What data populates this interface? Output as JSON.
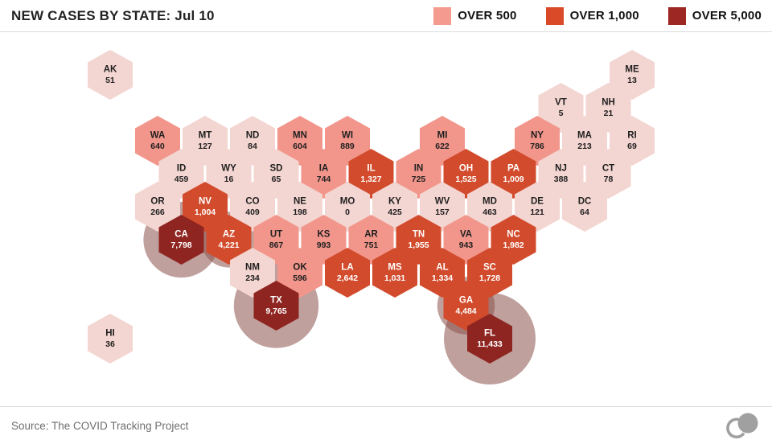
{
  "title": "NEW CASES BY STATE: Jul 10",
  "legend": [
    {
      "label": "OVER 500",
      "color": "#f59a8e"
    },
    {
      "label": "OVER 1,000",
      "color": "#da4a28"
    },
    {
      "label": "OVER 5,000",
      "color": "#9c2723"
    }
  ],
  "source": "Source: The COVID Tracking Project",
  "colors": {
    "under_500": "#f3d5d1",
    "over_500": "#f2968b",
    "over_1000": "#d24b2c",
    "over_5000": "#8e2521",
    "bubble": "rgba(139,82,76,0.55)",
    "text_dark": "#1f1f1f",
    "text_light": "#ffffff",
    "logo": "#a0a0a0"
  },
  "chart_data": {
    "type": "heatmap",
    "subtype": "hexagon-tile-cartogram",
    "title": "NEW CASES BY STATE: Jul 10",
    "date_label": "Jul 10",
    "unit": "new COVID-19 cases per state",
    "legend": [
      "OVER 500",
      "OVER 1,000",
      "OVER 5,000"
    ],
    "legend_position": "top-right",
    "bubble_note": "translucent circles behind tiles scale with case count for states over 1,000",
    "states": [
      {
        "abbr": "AK",
        "label": "51",
        "value": 51,
        "row": 0,
        "col": 0
      },
      {
        "abbr": "ME",
        "label": "13",
        "value": 13,
        "row": 0,
        "col": 22
      },
      {
        "abbr": "VT",
        "label": "5",
        "value": 5,
        "row": 1,
        "col": 19
      },
      {
        "abbr": "NH",
        "label": "21",
        "value": 21,
        "row": 1,
        "col": 21
      },
      {
        "abbr": "WA",
        "label": "640",
        "value": 640,
        "row": 2,
        "col": 2
      },
      {
        "abbr": "MT",
        "label": "127",
        "value": 127,
        "row": 2,
        "col": 4
      },
      {
        "abbr": "ND",
        "label": "84",
        "value": 84,
        "row": 2,
        "col": 6
      },
      {
        "abbr": "MN",
        "label": "604",
        "value": 604,
        "row": 2,
        "col": 8
      },
      {
        "abbr": "WI",
        "label": "889",
        "value": 889,
        "row": 2,
        "col": 10
      },
      {
        "abbr": "MI",
        "label": "622",
        "value": 622,
        "row": 2,
        "col": 14
      },
      {
        "abbr": "NY",
        "label": "786",
        "value": 786,
        "row": 2,
        "col": 18
      },
      {
        "abbr": "MA",
        "label": "213",
        "value": 213,
        "row": 2,
        "col": 20
      },
      {
        "abbr": "RI",
        "label": "69",
        "value": 69,
        "row": 2,
        "col": 22
      },
      {
        "abbr": "ID",
        "label": "459",
        "value": 459,
        "row": 3,
        "col": 3
      },
      {
        "abbr": "WY",
        "label": "16",
        "value": 16,
        "row": 3,
        "col": 5
      },
      {
        "abbr": "SD",
        "label": "65",
        "value": 65,
        "row": 3,
        "col": 7
      },
      {
        "abbr": "IA",
        "label": "744",
        "value": 744,
        "row": 3,
        "col": 9
      },
      {
        "abbr": "IL",
        "label": "1,327",
        "value": 1327,
        "row": 3,
        "col": 11
      },
      {
        "abbr": "IN",
        "label": "725",
        "value": 725,
        "row": 3,
        "col": 13
      },
      {
        "abbr": "OH",
        "label": "1,525",
        "value": 1525,
        "row": 3,
        "col": 15
      },
      {
        "abbr": "PA",
        "label": "1,009",
        "value": 1009,
        "row": 3,
        "col": 17
      },
      {
        "abbr": "NJ",
        "label": "388",
        "value": 388,
        "row": 3,
        "col": 19
      },
      {
        "abbr": "CT",
        "label": "78",
        "value": 78,
        "row": 3,
        "col": 21
      },
      {
        "abbr": "OR",
        "label": "266",
        "value": 266,
        "row": 4,
        "col": 2
      },
      {
        "abbr": "NV",
        "label": "1,004",
        "value": 1004,
        "row": 4,
        "col": 4
      },
      {
        "abbr": "CO",
        "label": "409",
        "value": 409,
        "row": 4,
        "col": 6
      },
      {
        "abbr": "NE",
        "label": "198",
        "value": 198,
        "row": 4,
        "col": 8
      },
      {
        "abbr": "MO",
        "label": "0",
        "value": 0,
        "row": 4,
        "col": 10
      },
      {
        "abbr": "KY",
        "label": "425",
        "value": 425,
        "row": 4,
        "col": 12
      },
      {
        "abbr": "WV",
        "label": "157",
        "value": 157,
        "row": 4,
        "col": 14
      },
      {
        "abbr": "MD",
        "label": "463",
        "value": 463,
        "row": 4,
        "col": 16
      },
      {
        "abbr": "DE",
        "label": "121",
        "value": 121,
        "row": 4,
        "col": 18
      },
      {
        "abbr": "DC",
        "label": "64",
        "value": 64,
        "row": 4,
        "col": 20
      },
      {
        "abbr": "CA",
        "label": "7,798",
        "value": 7798,
        "row": 5,
        "col": 3
      },
      {
        "abbr": "AZ",
        "label": "4,221",
        "value": 4221,
        "row": 5,
        "col": 5
      },
      {
        "abbr": "UT",
        "label": "867",
        "value": 867,
        "row": 5,
        "col": 7
      },
      {
        "abbr": "KS",
        "label": "993",
        "value": 993,
        "row": 5,
        "col": 9
      },
      {
        "abbr": "AR",
        "label": "751",
        "value": 751,
        "row": 5,
        "col": 11
      },
      {
        "abbr": "TN",
        "label": "1,955",
        "value": 1955,
        "row": 5,
        "col": 13
      },
      {
        "abbr": "VA",
        "label": "943",
        "value": 943,
        "row": 5,
        "col": 15
      },
      {
        "abbr": "NC",
        "label": "1,982",
        "value": 1982,
        "row": 5,
        "col": 17
      },
      {
        "abbr": "NM",
        "label": "234",
        "value": 234,
        "row": 6,
        "col": 6
      },
      {
        "abbr": "OK",
        "label": "596",
        "value": 596,
        "row": 6,
        "col": 8
      },
      {
        "abbr": "LA",
        "label": "2,642",
        "value": 2642,
        "row": 6,
        "col": 10
      },
      {
        "abbr": "MS",
        "label": "1,031",
        "value": 1031,
        "row": 6,
        "col": 12
      },
      {
        "abbr": "AL",
        "label": "1,334",
        "value": 1334,
        "row": 6,
        "col": 14
      },
      {
        "abbr": "SC",
        "label": "1,728",
        "value": 1728,
        "row": 6,
        "col": 16
      },
      {
        "abbr": "TX",
        "label": "9,765",
        "value": 9765,
        "row": 7,
        "col": 7
      },
      {
        "abbr": "GA",
        "label": "4,484",
        "value": 4484,
        "row": 7,
        "col": 15
      },
      {
        "abbr": "FL",
        "label": "11,433",
        "value": 11433,
        "row": 8,
        "col": 16
      },
      {
        "abbr": "HI",
        "label": "36",
        "value": 36,
        "row": 8,
        "col": 0
      }
    ],
    "source": "Source: The COVID Tracking Project"
  }
}
